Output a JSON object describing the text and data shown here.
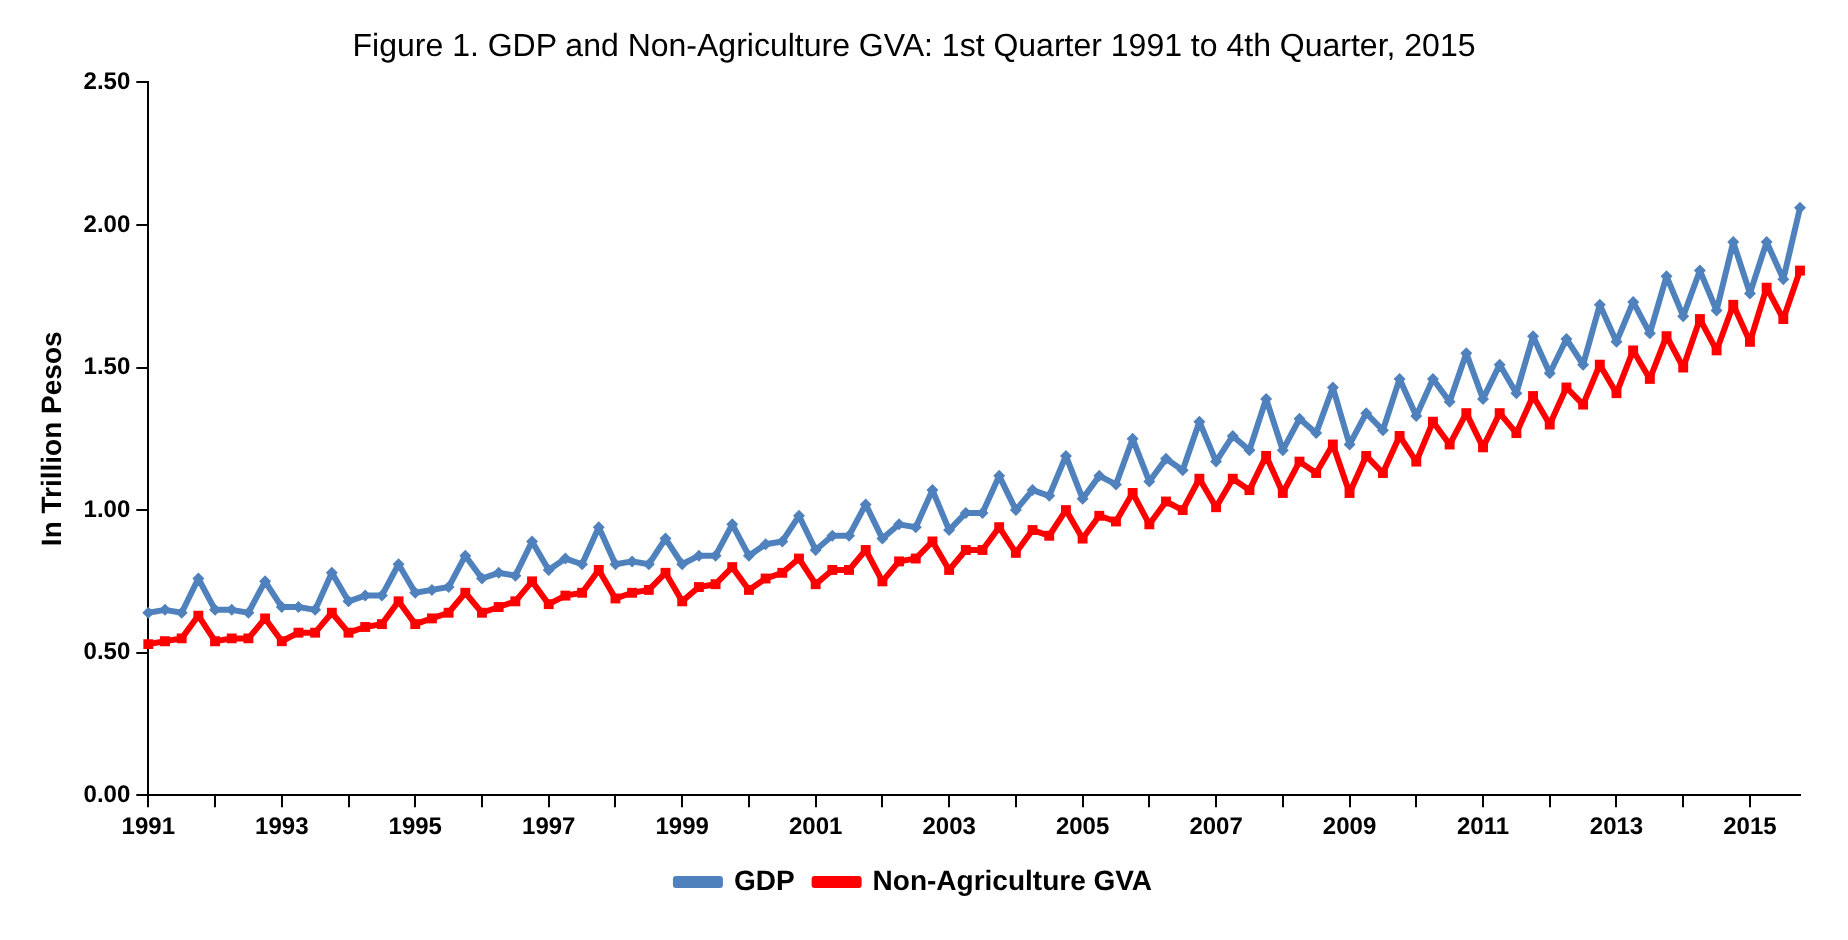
{
  "chart_data": {
    "type": "line",
    "title": "Figure 1. GDP and Non-Agriculture GVA: 1st Quarter 1991 to 4th Quarter, 2015",
    "ylabel": "In Trillion Pesos",
    "categories": [
      "1991",
      null,
      null,
      null,
      null,
      null,
      null,
      null,
      "1993",
      null,
      null,
      null,
      null,
      null,
      null,
      null,
      "1995",
      null,
      null,
      null,
      null,
      null,
      null,
      null,
      "1997",
      null,
      null,
      null,
      null,
      null,
      null,
      null,
      "1999",
      null,
      null,
      null,
      null,
      null,
      null,
      null,
      "2001",
      null,
      null,
      null,
      null,
      null,
      null,
      null,
      "2003",
      null,
      null,
      null,
      null,
      null,
      null,
      null,
      "2005",
      null,
      null,
      null,
      null,
      null,
      null,
      null,
      "2007",
      null,
      null,
      null,
      null,
      null,
      null,
      null,
      "2009",
      null,
      null,
      null,
      null,
      null,
      null,
      null,
      "2011",
      null,
      null,
      null,
      null,
      null,
      null,
      null,
      "2013",
      null,
      null,
      null,
      null,
      null,
      null,
      null,
      "2015",
      null,
      null,
      null
    ],
    "series": [
      {
        "name": "GDP",
        "color": "#4f81bd",
        "marker": "diamond",
        "values": [
          0.64,
          0.65,
          0.64,
          0.76,
          0.65,
          0.65,
          0.64,
          0.75,
          0.66,
          0.66,
          0.65,
          0.78,
          0.68,
          0.7,
          0.7,
          0.81,
          0.71,
          0.72,
          0.73,
          0.84,
          0.76,
          0.78,
          0.77,
          0.89,
          0.79,
          0.83,
          0.81,
          0.94,
          0.81,
          0.82,
          0.81,
          0.9,
          0.81,
          0.84,
          0.84,
          0.95,
          0.84,
          0.88,
          0.89,
          0.98,
          0.86,
          0.91,
          0.91,
          1.02,
          0.9,
          0.95,
          0.94,
          1.07,
          0.93,
          0.99,
          0.99,
          1.12,
          1.0,
          1.07,
          1.05,
          1.19,
          1.04,
          1.12,
          1.09,
          1.25,
          1.1,
          1.18,
          1.14,
          1.31,
          1.17,
          1.26,
          1.21,
          1.39,
          1.21,
          1.32,
          1.27,
          1.43,
          1.23,
          1.34,
          1.28,
          1.46,
          1.33,
          1.46,
          1.38,
          1.55,
          1.39,
          1.51,
          1.41,
          1.61,
          1.48,
          1.6,
          1.51,
          1.72,
          1.59,
          1.73,
          1.62,
          1.82,
          1.68,
          1.84,
          1.7,
          1.94,
          1.76,
          1.94,
          1.81,
          2.06
        ]
      },
      {
        "name": "Non-Agriculture GVA",
        "color": "#ff0000",
        "marker": "square",
        "values": [
          0.53,
          0.54,
          0.55,
          0.63,
          0.54,
          0.55,
          0.55,
          0.62,
          0.54,
          0.57,
          0.57,
          0.64,
          0.57,
          0.59,
          0.6,
          0.68,
          0.6,
          0.62,
          0.64,
          0.71,
          0.64,
          0.66,
          0.68,
          0.75,
          0.67,
          0.7,
          0.71,
          0.79,
          0.69,
          0.71,
          0.72,
          0.78,
          0.68,
          0.73,
          0.74,
          0.8,
          0.72,
          0.76,
          0.78,
          0.83,
          0.74,
          0.79,
          0.79,
          0.86,
          0.75,
          0.82,
          0.83,
          0.89,
          0.79,
          0.86,
          0.86,
          0.94,
          0.85,
          0.93,
          0.91,
          1.0,
          0.9,
          0.98,
          0.96,
          1.06,
          0.95,
          1.03,
          1.0,
          1.11,
          1.01,
          1.11,
          1.07,
          1.19,
          1.06,
          1.17,
          1.13,
          1.23,
          1.06,
          1.19,
          1.13,
          1.26,
          1.17,
          1.31,
          1.23,
          1.34,
          1.22,
          1.34,
          1.27,
          1.4,
          1.3,
          1.43,
          1.37,
          1.51,
          1.41,
          1.56,
          1.46,
          1.61,
          1.5,
          1.67,
          1.56,
          1.72,
          1.59,
          1.78,
          1.67,
          1.84
        ]
      }
    ],
    "ylim": [
      0,
      2.5
    ],
    "yticks": [
      {
        "value": 0,
        "label": "0.00"
      },
      {
        "value": 0.5,
        "label": "0.50"
      },
      {
        "value": 1,
        "label": "1.00"
      },
      {
        "value": 1.5,
        "label": "1.50"
      },
      {
        "value": 2,
        "label": "2.00"
      },
      {
        "value": 2.5,
        "label": "2.50"
      }
    ],
    "grid": false,
    "legend": "bottom",
    "line_style": "solid"
  }
}
